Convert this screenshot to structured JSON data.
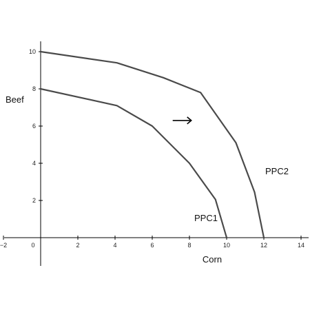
{
  "chart_data": {
    "type": "line",
    "title": "",
    "xlabel": "Corn",
    "ylabel": "Beef",
    "xlim": [
      -2.2,
      14.5
    ],
    "ylim": [
      -1.7,
      10.6
    ],
    "x_ticks": [
      "−2",
      "0",
      "2",
      "4",
      "6",
      "8",
      "10",
      "12",
      "14"
    ],
    "y_ticks": [
      "2",
      "4",
      "6",
      "8",
      "10"
    ],
    "grid": false,
    "series": [
      {
        "name": "PPC1",
        "points": [
          [
            0,
            8
          ],
          [
            4.1,
            7.1
          ],
          [
            6,
            6
          ],
          [
            8,
            4
          ],
          [
            9.4,
            2.05
          ],
          [
            10,
            0
          ]
        ]
      },
      {
        "name": "PPC2",
        "points": [
          [
            0,
            10
          ],
          [
            4.1,
            9.4
          ],
          [
            6.6,
            8.6
          ],
          [
            8.6,
            7.8
          ],
          [
            10.5,
            5.1
          ],
          [
            11.5,
            2.45
          ],
          [
            12,
            0
          ]
        ]
      }
    ],
    "annotations": [
      {
        "type": "arrow",
        "direction": "right",
        "from": [
          7.1,
          6.3
        ],
        "to": [
          8.1,
          6.3
        ]
      }
    ],
    "colors": {
      "curve": "#4a4a4a",
      "axis": "#000000"
    }
  }
}
